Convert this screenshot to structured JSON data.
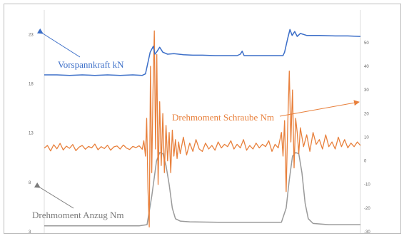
{
  "chart_data": {
    "type": "line",
    "left_axis": {
      "ticks": [
        "23",
        "18",
        "13",
        "8",
        "3"
      ],
      "range": [
        3,
        23.6
      ]
    },
    "right_axis": {
      "ticks": [
        "50",
        "40",
        "30",
        "20",
        "10",
        "0",
        "-10",
        "-20",
        "-30"
      ],
      "range": [
        -30,
        56
      ]
    },
    "x": {
      "range": [
        0,
        100
      ]
    },
    "series": [
      {
        "name": "Vorspannkraft kN",
        "axis": "left",
        "color": "#3b6ec8",
        "points": [
          [
            0,
            18.9
          ],
          [
            4,
            18.9
          ],
          [
            8,
            18.85
          ],
          [
            12,
            18.9
          ],
          [
            16,
            18.85
          ],
          [
            20,
            18.9
          ],
          [
            24,
            18.85
          ],
          [
            28,
            18.9
          ],
          [
            31,
            18.85
          ],
          [
            32,
            19.0
          ],
          [
            33.5,
            21.2
          ],
          [
            34.5,
            21.8
          ],
          [
            35,
            21.0
          ],
          [
            35.5,
            21.2
          ],
          [
            36.5,
            21.7
          ],
          [
            37.5,
            21.2
          ],
          [
            39,
            21.0
          ],
          [
            41,
            21.05
          ],
          [
            44,
            20.95
          ],
          [
            47,
            20.9
          ],
          [
            50,
            20.9
          ],
          [
            54,
            20.85
          ],
          [
            58,
            20.85
          ],
          [
            61,
            20.85
          ],
          [
            62,
            21.0
          ],
          [
            62.6,
            21.3
          ],
          [
            63.2,
            20.85
          ],
          [
            66,
            20.85
          ],
          [
            70,
            20.85
          ],
          [
            74,
            20.85
          ],
          [
            75.5,
            20.85
          ],
          [
            76,
            21.2
          ],
          [
            77,
            22.6
          ],
          [
            77.7,
            23.5
          ],
          [
            78.4,
            22.9
          ],
          [
            79.2,
            23.3
          ],
          [
            80,
            22.8
          ],
          [
            81,
            23.1
          ],
          [
            83,
            22.9
          ],
          [
            87,
            22.9
          ],
          [
            92,
            22.85
          ],
          [
            96,
            22.85
          ],
          [
            100,
            22.8
          ]
        ]
      },
      {
        "name": "Drehmoment Schraube Nm",
        "axis": "right",
        "color": "#e8803c",
        "points": [
          [
            0,
            5.4
          ],
          [
            1,
            6.5
          ],
          [
            2,
            4.2
          ],
          [
            3,
            6.8
          ],
          [
            4,
            5.1
          ],
          [
            5,
            7.4
          ],
          [
            6,
            4.6
          ],
          [
            7,
            6.2
          ],
          [
            8,
            5.3
          ],
          [
            9,
            6.9
          ],
          [
            10,
            4.3
          ],
          [
            11,
            5.8
          ],
          [
            12,
            6.5
          ],
          [
            13,
            4.9
          ],
          [
            14,
            6.1
          ],
          [
            15,
            5.5
          ],
          [
            16,
            7.1
          ],
          [
            17,
            4.7
          ],
          [
            18,
            6.0
          ],
          [
            19,
            5.2
          ],
          [
            20,
            6.6
          ],
          [
            21,
            4.5
          ],
          [
            22,
            5.9
          ],
          [
            23,
            6.3
          ],
          [
            24,
            5.0
          ],
          [
            25,
            6.7
          ],
          [
            26,
            5.4
          ],
          [
            27,
            4.8
          ],
          [
            28,
            6.1
          ],
          [
            29,
            5.6
          ],
          [
            30,
            6.4
          ],
          [
            31,
            4.9
          ],
          [
            31.5,
            8.5
          ],
          [
            32,
            2.0
          ],
          [
            32.4,
            18.0
          ],
          [
            32.8,
            -12.0
          ],
          [
            33.2,
            -28.0
          ],
          [
            33.6,
            40.0
          ],
          [
            34,
            -5.0
          ],
          [
            34.4,
            30.0
          ],
          [
            34.8,
            55.0
          ],
          [
            35.2,
            5.0
          ],
          [
            35.6,
            45.0
          ],
          [
            36,
            -10.0
          ],
          [
            36.5,
            25.0
          ],
          [
            37,
            -2.0
          ],
          [
            37.5,
            20.0
          ],
          [
            38,
            -5.0
          ],
          [
            38.5,
            15.0
          ],
          [
            39,
            0.0
          ],
          [
            39.5,
            12.0
          ],
          [
            40,
            -5.0
          ],
          [
            40.5,
            13.0
          ],
          [
            41,
            2.0
          ],
          [
            41.5,
            9.0
          ],
          [
            42,
            1.0
          ],
          [
            42.5,
            8.0
          ],
          [
            43,
            3.0
          ],
          [
            44,
            10.0
          ],
          [
            45,
            2.5
          ],
          [
            46,
            7.5
          ],
          [
            47,
            4.0
          ],
          [
            48,
            9.0
          ],
          [
            49,
            5.0
          ],
          [
            50,
            4.0
          ],
          [
            51,
            7.5
          ],
          [
            52,
            5.0
          ],
          [
            53,
            6.5
          ],
          [
            54,
            4.5
          ],
          [
            55,
            8.0
          ],
          [
            56,
            5.5
          ],
          [
            57,
            7.0
          ],
          [
            58,
            6.0
          ],
          [
            59,
            8.5
          ],
          [
            60,
            5.0
          ],
          [
            61,
            7.0
          ],
          [
            62,
            5.5
          ],
          [
            63,
            9.0
          ],
          [
            64,
            4.5
          ],
          [
            65,
            6.5
          ],
          [
            66,
            5.0
          ],
          [
            67,
            7.5
          ],
          [
            68,
            5.5
          ],
          [
            69,
            7.0
          ],
          [
            70,
            6.0
          ],
          [
            71,
            8.5
          ],
          [
            72,
            4.0
          ],
          [
            73,
            7.0
          ],
          [
            74,
            5.5
          ],
          [
            75,
            12.0
          ],
          [
            75.5,
            2.0
          ],
          [
            76,
            17.0
          ],
          [
            76.5,
            -13.0
          ],
          [
            77,
            15.0
          ],
          [
            77.5,
            38.0
          ],
          [
            78,
            8.0
          ],
          [
            78.5,
            30.0
          ],
          [
            79,
            -3.0
          ],
          [
            79.5,
            18.0
          ],
          [
            80,
            12.0
          ],
          [
            80.5,
            3.0
          ],
          [
            81,
            14.0
          ],
          [
            82,
            6.0
          ],
          [
            83,
            11.0
          ],
          [
            84,
            4.0
          ],
          [
            85,
            12.0
          ],
          [
            86,
            7.0
          ],
          [
            87,
            9.0
          ],
          [
            88,
            5.0
          ],
          [
            89,
            11.0
          ],
          [
            90,
            6.0
          ],
          [
            91,
            8.0
          ],
          [
            92,
            5.0
          ],
          [
            93,
            10.0
          ],
          [
            94,
            6.0
          ],
          [
            95,
            9.0
          ],
          [
            96,
            5.5
          ],
          [
            97,
            7.5
          ],
          [
            98,
            6.0
          ],
          [
            99,
            8.0
          ],
          [
            100,
            6.5
          ]
        ]
      },
      {
        "name": "Drehmoment Anzug Nm",
        "axis": "right",
        "color": "#9a9a9a",
        "points": [
          [
            0,
            -27.5
          ],
          [
            10,
            -27.5
          ],
          [
            20,
            -27.5
          ],
          [
            30,
            -27.5
          ],
          [
            32.5,
            -27.0
          ],
          [
            34,
            -15.0
          ],
          [
            35.5,
            0.0
          ],
          [
            36.5,
            3.5
          ],
          [
            37.5,
            3.0
          ],
          [
            38.5,
            -2.0
          ],
          [
            39.5,
            -10.0
          ],
          [
            40.5,
            -20.0
          ],
          [
            41.5,
            -24.5
          ],
          [
            43,
            -25.5
          ],
          [
            46,
            -25.8
          ],
          [
            55,
            -26.0
          ],
          [
            65,
            -26.0
          ],
          [
            72,
            -26.0
          ],
          [
            75,
            -26.0
          ],
          [
            76.5,
            -20.0
          ],
          [
            77.5,
            -8.0
          ],
          [
            78.5,
            2.0
          ],
          [
            79.5,
            3.5
          ],
          [
            80.5,
            3.0
          ],
          [
            81.5,
            -5.0
          ],
          [
            82.5,
            -18.0
          ],
          [
            83.5,
            -24.5
          ],
          [
            85,
            -26.5
          ],
          [
            90,
            -27.0
          ],
          [
            100,
            -27.0
          ]
        ]
      }
    ],
    "annotations": [
      {
        "series": 0,
        "text": "Vorspannkraft kN"
      },
      {
        "series": 1,
        "text": "Drehmoment Schraube Nm"
      },
      {
        "series": 2,
        "text": "Drehmoment Anzug Nm"
      }
    ],
    "grid": false,
    "legend": "none"
  }
}
